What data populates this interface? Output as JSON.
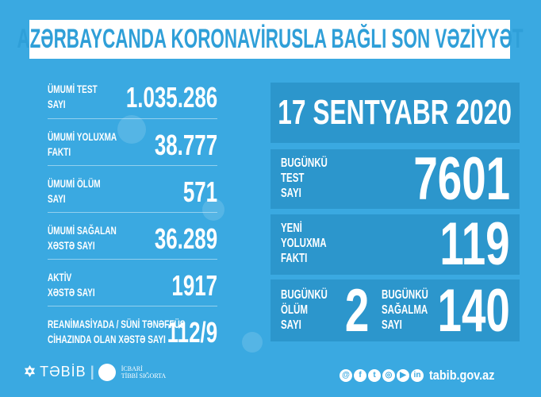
{
  "title": "AZƏRBAYCANDA KORONAVİRUSLA BAĞLI SON VƏZİYYƏT",
  "totals": [
    {
      "label1": "ÜMUMİ TEST",
      "label2": "SAYI",
      "value": "1.035.286"
    },
    {
      "label1": "ÜMUMİ YOLUXMA",
      "label2": "FAKTI",
      "value": "38.777"
    },
    {
      "label1": "ÜMUMİ ÖLÜM",
      "label2": "SAYI",
      "value": "571"
    },
    {
      "label1": "ÜMUMİ SAĞALAN",
      "label2": "XƏSTƏ SAYI",
      "value": "36.289"
    },
    {
      "label1": "AKTİV",
      "label2": "XƏSTƏ SAYI",
      "value": "1917"
    },
    {
      "label1": "REANİMASİYADA / SÜNİ TƏNƏFFÜS",
      "label2": "CİHAZINDA OLAN XƏSTƏ SAYI",
      "value": "112/9"
    }
  ],
  "date": "17 SENTYABR 2020",
  "today": {
    "test": {
      "l1": "BUGÜNKÜ",
      "l2": "TEST",
      "l3": "SAYI",
      "value": "7601"
    },
    "infected": {
      "l1": "YENİ",
      "l2": "YOLUXMA",
      "l3": "FAKTI",
      "value": "119"
    },
    "deaths": {
      "l1": "BUGÜNKÜ",
      "l2": "ÖLÜM",
      "l3": "SAYI",
      "value": "2"
    },
    "recovered": {
      "l1": "BUGÜNKÜ",
      "l2": "SAĞALMA",
      "l3": "SAYI",
      "value": "140"
    }
  },
  "footer": {
    "logo1": "TƏBİB",
    "logo2a": "İCBARİ",
    "logo2b": "TİBBİ SIĞORTA",
    "website": "tabib.gov.az",
    "social_icons": [
      "web-icon",
      "facebook-icon",
      "twitter-icon",
      "instagram-icon",
      "youtube-icon",
      "linkedin-icon"
    ]
  },
  "colors": {
    "background": "#3aa9e1",
    "panel": "#2c96cc",
    "title_text": "#2f9fd8"
  }
}
